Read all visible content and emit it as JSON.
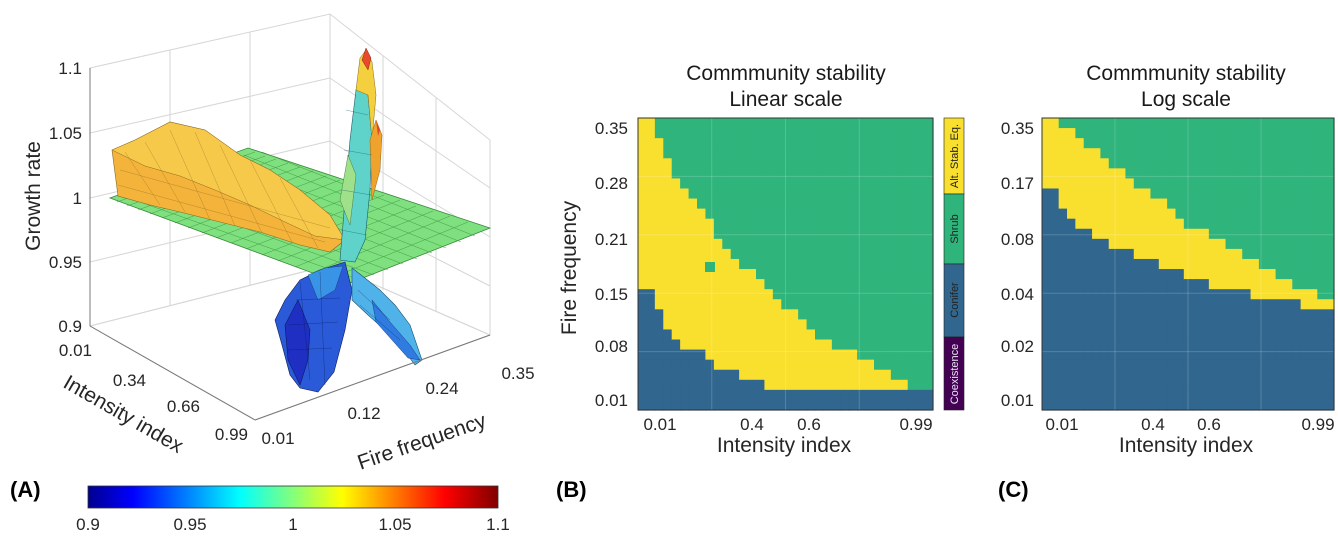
{
  "chart_data": [
    {
      "panel_label": "(A)",
      "type": "surface3d",
      "zlabel": "Growth rate",
      "xlabel": "Intensity index",
      "ylabel": "Fire frequency",
      "x_ticks": [
        "0.01",
        "0.34",
        "0.66",
        "0.99"
      ],
      "y_ticks": [
        "0.01",
        "0.12",
        "0.24",
        "0.35"
      ],
      "z_ticks": [
        "0.9",
        "0.95",
        "1",
        "1.05",
        "1.1"
      ],
      "zlim": [
        0.9,
        1.1
      ],
      "reference_plane": 1,
      "colorbar": {
        "ticks": [
          "0.9",
          "0.95",
          "1",
          "1.05",
          "1.1"
        ],
        "range": [
          0.9,
          1.1
        ],
        "colormap": "jet",
        "colors": [
          "#00008f",
          "#0000ff",
          "#00ffff",
          "#ffff00",
          "#ff0000",
          "#800000"
        ]
      }
    },
    {
      "panel_label": "(B)",
      "type": "heatmap",
      "title": [
        "Commmunity stability",
        "Linear scale"
      ],
      "xlabel": "Intensity index",
      "ylabel": "Fire frequency",
      "x_ticks": [
        "0.01",
        "0.4",
        "0.6",
        "0.99"
      ],
      "y_ticks": [
        "0.35",
        "0.28",
        "0.21",
        "0.15",
        "0.08",
        "0.01"
      ],
      "y_scale": "linear",
      "grid": true,
      "legend_placement": "right",
      "categories": [
        "Alt. Stab. Eq.",
        "Shrub",
        "Conifer",
        "Coexistence"
      ],
      "category_colors": [
        "#f9e02f",
        "#2fb47c",
        "#31678e",
        "#440154"
      ],
      "grid_size": [
        35,
        29
      ],
      "boundaries": {
        "conifer_upper": [
          0.16,
          0.16,
          0.13,
          0.11,
          0.1,
          0.09,
          0.09,
          0.08,
          0.07,
          0.06,
          0.06,
          0.06,
          0.05,
          0.05,
          0.05,
          0.04,
          0.04,
          0.04,
          0.04,
          0.04,
          0.04,
          0.04,
          0.04,
          0.04,
          0.04,
          0.04,
          0.04,
          0.04,
          0.04,
          0.04,
          0.04,
          0.04,
          0.04,
          0.04,
          0.04
        ],
        "shrub_lower": [
          0.37,
          0.37,
          0.35,
          0.32,
          0.3,
          0.28,
          0.27,
          0.26,
          0.24,
          0.22,
          0.21,
          0.2,
          0.19,
          0.18,
          0.17,
          0.16,
          0.15,
          0.14,
          0.13,
          0.12,
          0.11,
          0.1,
          0.1,
          0.09,
          0.09,
          0.08,
          0.07,
          0.07,
          0.06,
          0.06,
          0.05,
          0.05,
          0.04,
          0.04,
          0.04
        ]
      }
    },
    {
      "panel_label": "(C)",
      "type": "heatmap",
      "title": [
        "Commmunity stability",
        "Log scale"
      ],
      "xlabel": "Intensity index",
      "ylabel": "",
      "x_ticks": [
        "0.01",
        "0.4",
        "0.6",
        "0.99"
      ],
      "y_ticks": [
        "0.35",
        "0.17",
        "0.08",
        "0.04",
        "0.02",
        "0.01"
      ],
      "y_scale": "log",
      "grid": true,
      "categories": [
        "Alt. Stab. Eq.",
        "Shrub",
        "Conifer",
        "Coexistence"
      ],
      "category_colors": [
        "#f9e02f",
        "#2fb47c",
        "#31678e",
        "#440154"
      ],
      "grid_size": [
        35,
        29
      ],
      "boundaries": {
        "conifer_upper": [
          0.16,
          0.15,
          0.12,
          0.11,
          0.1,
          0.09,
          0.086,
          0.082,
          0.078,
          0.074,
          0.071,
          0.068,
          0.065,
          0.062,
          0.059,
          0.056,
          0.054,
          0.052,
          0.05,
          0.048,
          0.047,
          0.045,
          0.044,
          0.043,
          0.042,
          0.041,
          0.04,
          0.039,
          0.038,
          0.037,
          0.037,
          0.036,
          0.036,
          0.035,
          0.035
        ],
        "shrub_lower": [
          0.37,
          0.37,
          0.34,
          0.31,
          0.28,
          0.26,
          0.24,
          0.22,
          0.2,
          0.19,
          0.18,
          0.16,
          0.15,
          0.14,
          0.13,
          0.12,
          0.11,
          0.1,
          0.095,
          0.09,
          0.085,
          0.08,
          0.075,
          0.07,
          0.066,
          0.062,
          0.058,
          0.055,
          0.052,
          0.049,
          0.046,
          0.044,
          0.042,
          0.04,
          0.04
        ]
      }
    }
  ]
}
